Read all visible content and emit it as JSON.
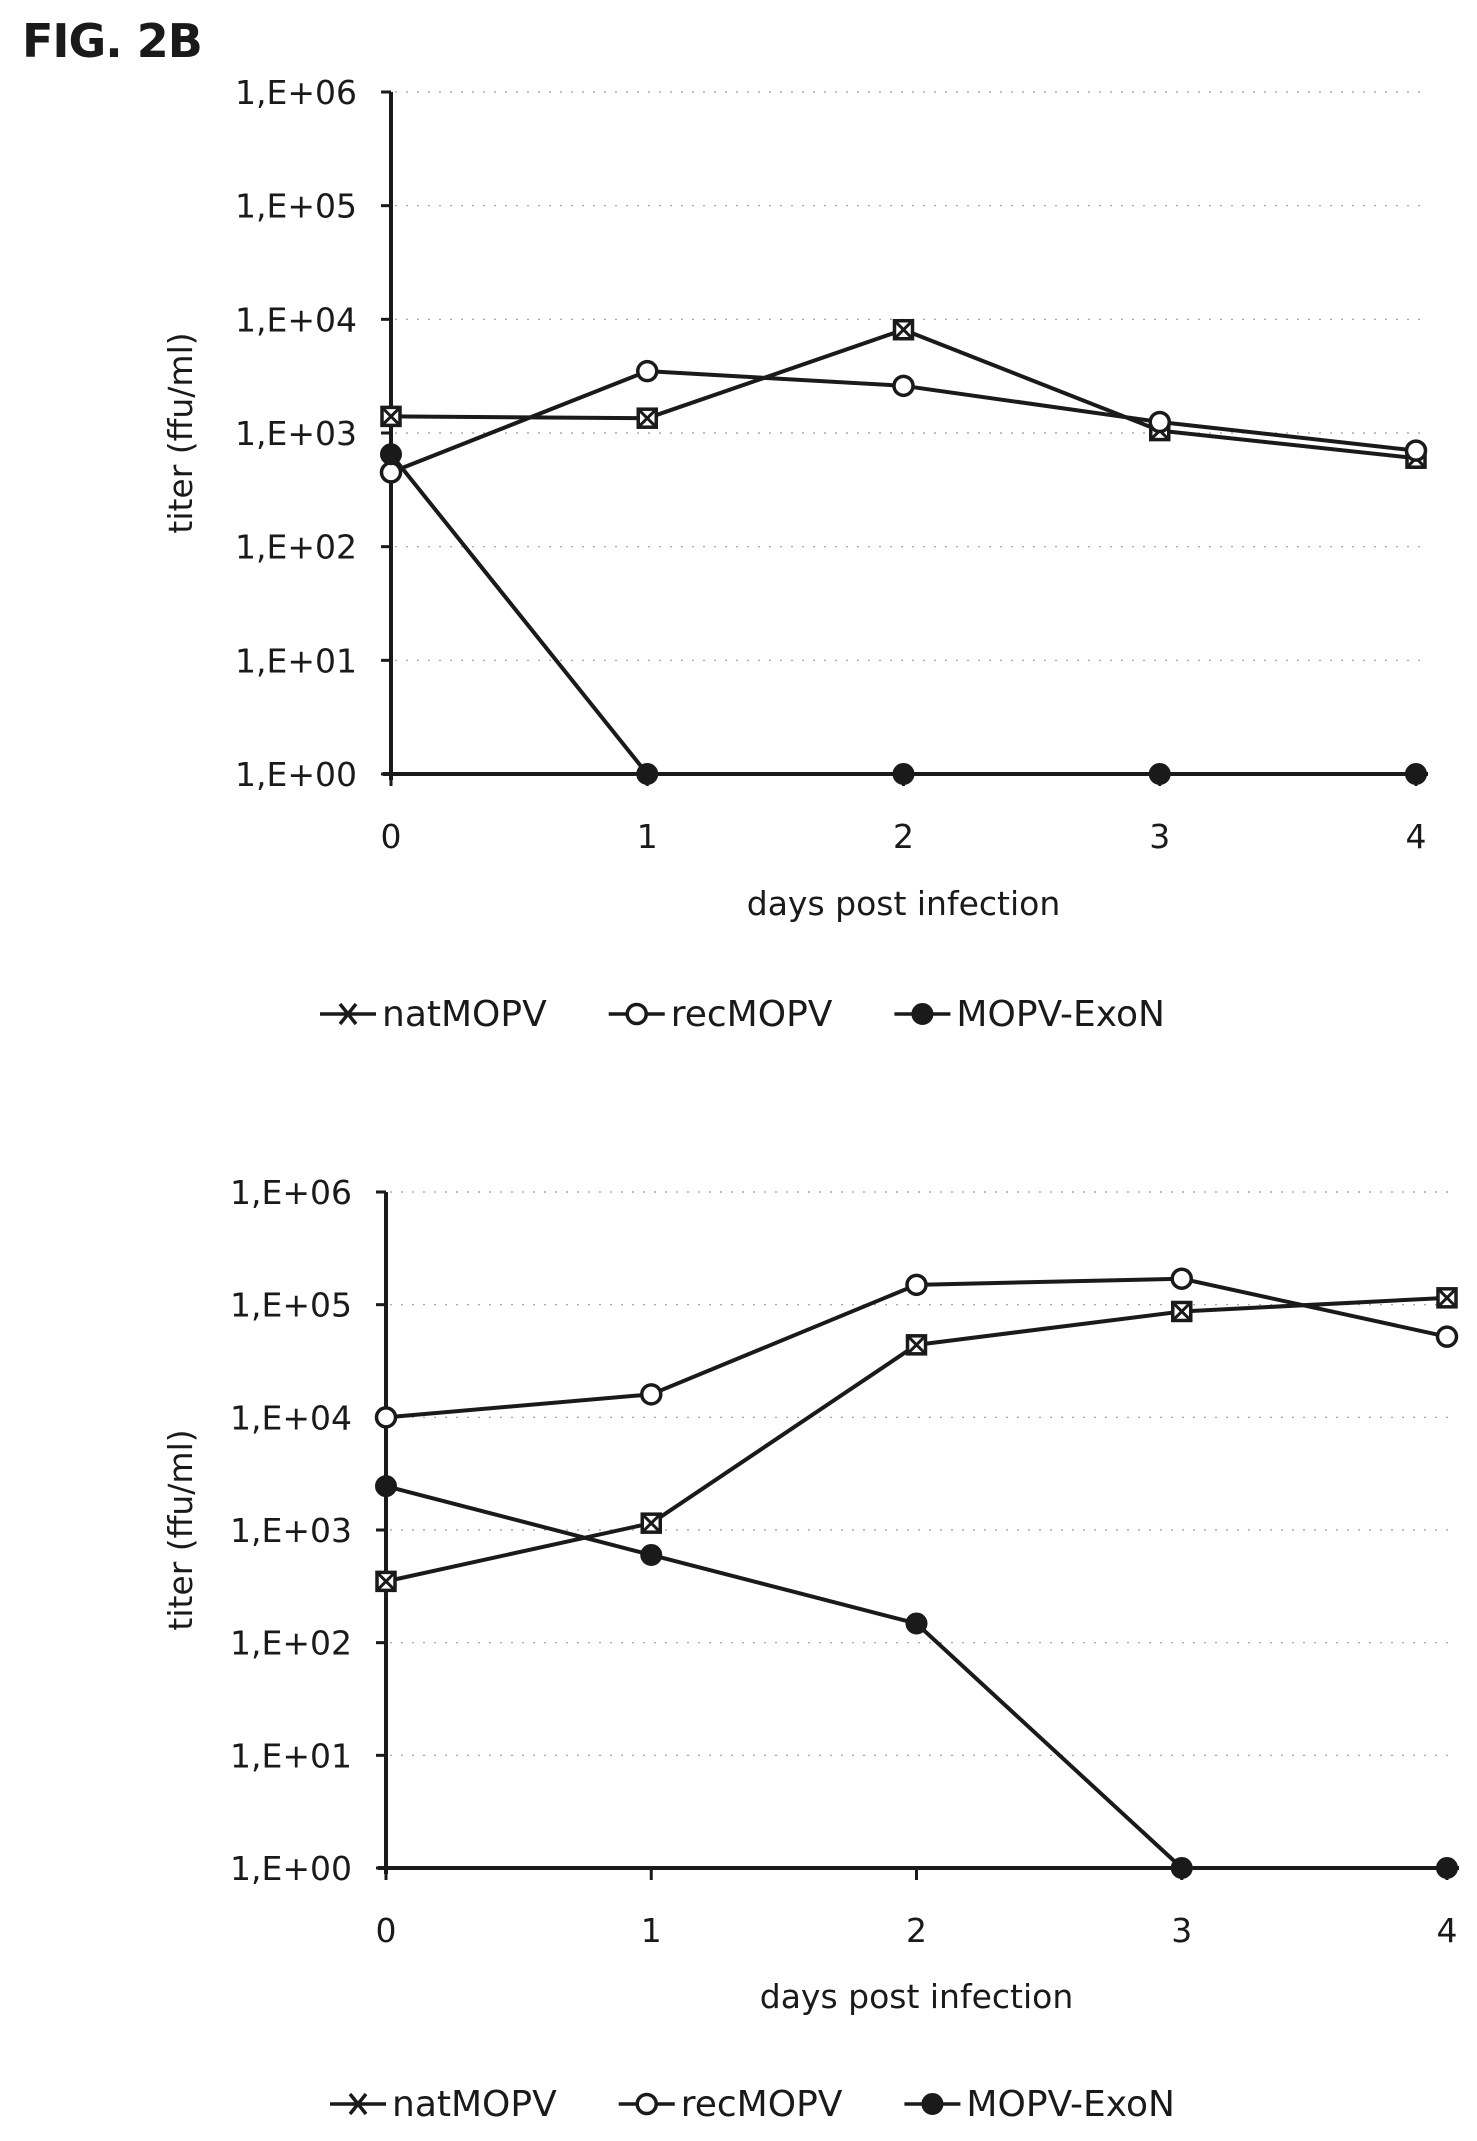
{
  "figure_label": "FIG. 2B",
  "chart_data": [
    {
      "type": "line",
      "title": "",
      "xlabel": "days post infection",
      "ylabel": "titer (ffu/ml)",
      "yscale": "log",
      "ylim": [
        1,
        1000000
      ],
      "xlim": [
        0,
        4
      ],
      "x": [
        0,
        1,
        2,
        3,
        4
      ],
      "x_tick_labels": [
        "0",
        "1",
        "2",
        "3",
        "4"
      ],
      "y_ticks": [
        1,
        10,
        100,
        1000,
        10000,
        100000,
        1000000
      ],
      "y_tick_labels": [
        "1,E+00",
        "1,E+01",
        "1,E+02",
        "1,E+03",
        "1,E+04",
        "1,E+05",
        "1,E+06"
      ],
      "grid": "horizontal-dotted",
      "legend_position": "bottom",
      "series": [
        {
          "name": "natMOPV",
          "marker": "square-x",
          "values": [
            1400,
            1350,
            8100,
            1050,
            600
          ]
        },
        {
          "name": "recMOPV",
          "marker": "open-circle",
          "values": [
            450,
            3500,
            2600,
            1250,
            700
          ]
        },
        {
          "name": "MOPV-ExoN",
          "marker": "filled-circle",
          "values": [
            650,
            1,
            1,
            1,
            1
          ]
        }
      ]
    },
    {
      "type": "line",
      "title": "",
      "xlabel": "days post infection",
      "ylabel": "titer (ffu/ml)",
      "yscale": "log",
      "ylim": [
        1,
        1000000
      ],
      "xlim": [
        0,
        4
      ],
      "x": [
        0,
        1,
        2,
        3,
        4
      ],
      "x_tick_labels": [
        "0",
        "1",
        "2",
        "3",
        "4"
      ],
      "y_ticks": [
        1,
        10,
        100,
        1000,
        10000,
        100000,
        1000000
      ],
      "y_tick_labels": [
        "1,E+00",
        "1,E+01",
        "1,E+02",
        "1,E+03",
        "1,E+04",
        "1,E+05",
        "1,E+06"
      ],
      "grid": "horizontal-dotted",
      "legend_position": "bottom",
      "series": [
        {
          "name": "natMOPV",
          "marker": "square-x",
          "values": [
            350,
            1150,
            44000,
            87000,
            115000
          ]
        },
        {
          "name": "recMOPV",
          "marker": "open-circle",
          "values": [
            10000,
            16000,
            150000,
            170000,
            52000
          ]
        },
        {
          "name": "MOPV-ExoN",
          "marker": "filled-circle",
          "values": [
            2450,
            600,
            148,
            1,
            1
          ]
        }
      ]
    }
  ]
}
